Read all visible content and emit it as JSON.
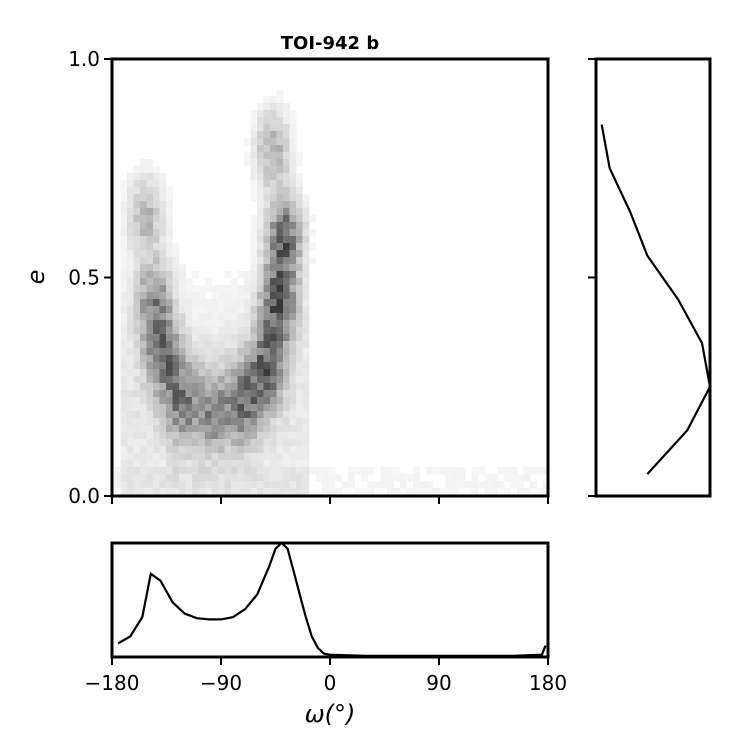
{
  "chart_data": [
    {
      "panel": "main",
      "type": "heatmap",
      "title": "TOI-942 b",
      "xlabel": "",
      "ylabel": "e",
      "xlim": [
        -180,
        180
      ],
      "ylim": [
        0,
        1
      ],
      "x_ticks": [
        -180,
        -90,
        0,
        90,
        180
      ],
      "y_ticks": [
        "0.0",
        "0.5",
        "1.0"
      ],
      "grid": false,
      "colormap": "greys",
      "description_of_density": [
        {
          "omega": -148,
          "e": 0.45,
          "weight": 0.55
        },
        {
          "omega": -140,
          "e": 0.33,
          "weight": 0.6
        },
        {
          "omega": -125,
          "e": 0.22,
          "weight": 0.55
        },
        {
          "omega": -100,
          "e": 0.2,
          "weight": 0.5
        },
        {
          "omega": -75,
          "e": 0.22,
          "weight": 0.6
        },
        {
          "omega": -55,
          "e": 0.3,
          "weight": 0.7
        },
        {
          "omega": -45,
          "e": 0.45,
          "weight": 0.8
        },
        {
          "omega": -40,
          "e": 0.6,
          "weight": 0.75
        },
        {
          "omega": -50,
          "e": 0.8,
          "weight": 0.4
        },
        {
          "omega": -155,
          "e": 0.65,
          "weight": 0.35
        }
      ]
    },
    {
      "panel": "right",
      "type": "line",
      "xlabel": "",
      "ylabel": "",
      "ylim": [
        0,
        1
      ],
      "orientation": "horizontal",
      "y": [
        0.85,
        0.75,
        0.65,
        0.55,
        0.45,
        0.35,
        0.25,
        0.15,
        0.05
      ],
      "values": [
        0.05,
        0.12,
        0.3,
        0.45,
        0.72,
        0.93,
        1.0,
        0.8,
        0.45
      ]
    },
    {
      "panel": "bottom",
      "type": "line",
      "xlabel": "ω(°)",
      "ylabel": "",
      "xlim": [
        -180,
        180
      ],
      "x_ticks": [
        "−180",
        "−90",
        "0",
        "90",
        "180"
      ],
      "x": [
        -175,
        -165,
        -155,
        -148,
        -140,
        -130,
        -120,
        -110,
        -100,
        -90,
        -80,
        -70,
        -60,
        -50,
        -45,
        -40,
        -35,
        -30,
        -25,
        -20,
        -15,
        -10,
        -5,
        0,
        30,
        90,
        150,
        175,
        178
      ],
      "values": [
        0.12,
        0.18,
        0.35,
        0.73,
        0.67,
        0.48,
        0.38,
        0.34,
        0.33,
        0.33,
        0.35,
        0.42,
        0.55,
        0.8,
        0.95,
        1.0,
        0.95,
        0.75,
        0.55,
        0.35,
        0.18,
        0.08,
        0.03,
        0.02,
        0.01,
        0.01,
        0.01,
        0.02,
        0.1
      ]
    }
  ],
  "figure": {
    "title": "TOI-942 b",
    "ylabel": "e",
    "xlabel": "ω(°)"
  }
}
